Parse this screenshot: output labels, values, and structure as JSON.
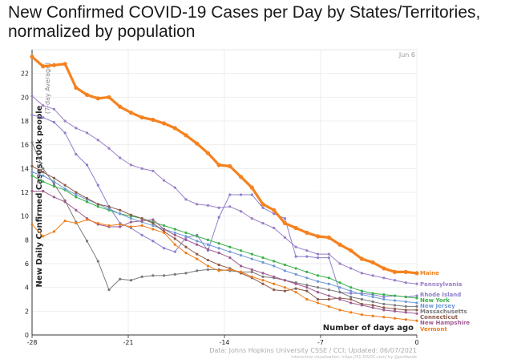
{
  "title": "New Confirmed COVID-19 Cases per Day by States/Territories, normalized by population",
  "chart_data": {
    "type": "line",
    "ylabel": "New Daily Confirmed Cases/100k people",
    "ylabel_sub": "(7-day Average)",
    "xlabel": "Number of days ago",
    "date_label": "Jun 6",
    "source": "Data: Johns Hopkins University CSSE / CCI; Updated: 06/07/2021",
    "source_sub": "Interactive visualization: https://91-DIVOC.com/ by @profwade",
    "xlim": [
      -28,
      0
    ],
    "ylim": [
      0,
      24
    ],
    "xticks": [
      -28,
      -21,
      -14,
      -7,
      0
    ],
    "yticks": [
      0,
      2,
      4,
      6,
      8,
      10,
      12,
      14,
      16,
      18,
      20,
      22
    ],
    "series": [
      {
        "name": "Maine",
        "color": "#f5821f",
        "highlight": true,
        "values": [
          23.4,
          22.6,
          22.7,
          22.8,
          20.8,
          20.2,
          19.9,
          20.0,
          19.2,
          18.7,
          18.3,
          18.1,
          17.8,
          17.4,
          16.8,
          16.1,
          15.3,
          14.3,
          14.2,
          13.3,
          12.4,
          11.0,
          10.5,
          9.4,
          9.0,
          8.6,
          8.3,
          8.2,
          7.6,
          7.1,
          6.4,
          6.1,
          5.6,
          5.3,
          5.3,
          5.2
        ]
      },
      {
        "name": "Pennsylvania",
        "color": "#9b7ec8",
        "highlight": false,
        "values": [
          20.1,
          19.3,
          19.0,
          18.0,
          17.4,
          17.0,
          16.4,
          15.7,
          14.9,
          14.3,
          14.0,
          13.8,
          13.0,
          12.4,
          11.4,
          11.0,
          10.9,
          10.7,
          10.8,
          10.4,
          9.8,
          9.4,
          9.0,
          8.2,
          7.4,
          7.1,
          6.8,
          6.8,
          6.0,
          5.6,
          5.2,
          5.0,
          4.8,
          4.6,
          4.4,
          4.3
        ]
      },
      {
        "name": "Rhode Island",
        "color": "#8a80cc",
        "highlight": false,
        "values": [
          18.5,
          18.3,
          17.9,
          17.0,
          15.2,
          14.3,
          12.6,
          10.8,
          9.4,
          9.0,
          8.4,
          7.9,
          7.3,
          7.0,
          8.2,
          8.4,
          7.1,
          9.9,
          11.8,
          11.8,
          11.8,
          10.7,
          10.2,
          9.8,
          6.6,
          6.6,
          6.5,
          6.5,
          3.6,
          3.5,
          3.5,
          3.4,
          3.2,
          3.3,
          3.2,
          3.3
        ]
      },
      {
        "name": "New York",
        "color": "#3ab04a",
        "highlight": false,
        "values": [
          13.4,
          12.9,
          12.5,
          12.2,
          11.6,
          11.2,
          10.8,
          10.5,
          10.2,
          10.0,
          9.8,
          9.5,
          9.2,
          8.9,
          8.6,
          8.3,
          8.0,
          7.7,
          7.4,
          7.1,
          6.8,
          6.5,
          6.2,
          5.9,
          5.6,
          5.3,
          5.0,
          4.8,
          4.4,
          4.0,
          3.7,
          3.5,
          3.4,
          3.3,
          3.2,
          3.1
        ]
      },
      {
        "name": "New Jersey",
        "color": "#6f9ad8",
        "highlight": false,
        "values": [
          13.7,
          13.4,
          12.9,
          12.3,
          11.8,
          11.4,
          11.0,
          10.6,
          10.2,
          9.8,
          9.5,
          9.2,
          8.9,
          8.6,
          8.3,
          7.9,
          7.6,
          7.3,
          7.0,
          6.7,
          6.4,
          6.1,
          5.8,
          5.4,
          5.1,
          4.8,
          4.5,
          4.3,
          4.0,
          3.7,
          3.4,
          3.2,
          3.0,
          2.9,
          2.8,
          2.7
        ]
      },
      {
        "name": "Massachusetts",
        "color": "#7a7a7a",
        "highlight": false,
        "values": [
          16.2,
          14.0,
          12.7,
          11.3,
          9.5,
          7.9,
          6.2,
          3.8,
          4.7,
          4.6,
          4.9,
          5.0,
          5.0,
          5.1,
          5.2,
          5.4,
          5.5,
          5.5,
          5.4,
          5.3,
          5.3,
          4.9,
          4.8,
          4.6,
          4.4,
          4.2,
          4.0,
          3.8,
          3.6,
          3.2,
          3.0,
          2.8,
          2.6,
          2.5,
          2.4,
          2.4
        ]
      },
      {
        "name": "Connecticut",
        "color": "#8b5a4a",
        "highlight": false,
        "values": [
          14.2,
          13.7,
          13.2,
          12.6,
          12.0,
          11.5,
          11.0,
          10.8,
          10.5,
          10.1,
          9.8,
          9.4,
          8.7,
          8.1,
          7.4,
          6.8,
          6.3,
          5.9,
          5.6,
          5.2,
          4.8,
          4.3,
          3.8,
          3.7,
          3.9,
          3.7,
          3.0,
          3.0,
          3.1,
          3.0,
          2.6,
          2.5,
          2.3,
          2.2,
          2.1,
          2.1
        ]
      },
      {
        "name": "New Hampshire",
        "color": "#9e5b8f",
        "highlight": false,
        "values": [
          12.1,
          12.1,
          11.6,
          11.2,
          10.5,
          9.8,
          9.3,
          9.1,
          9.1,
          9.5,
          9.6,
          9.7,
          8.9,
          8.4,
          8.0,
          7.6,
          7.2,
          6.9,
          6.5,
          5.8,
          5.5,
          5.2,
          4.9,
          4.6,
          4.3,
          4.0,
          3.6,
          3.3,
          3.0,
          2.7,
          2.5,
          2.3,
          2.1,
          2.0,
          1.9,
          1.8
        ]
      },
      {
        "name": "Vermont",
        "color": "#ef7d19",
        "highlight": false,
        "values": [
          9.3,
          8.3,
          8.7,
          9.6,
          9.4,
          9.7,
          9.4,
          9.2,
          9.3,
          9.1,
          9.2,
          8.9,
          8.6,
          7.6,
          6.9,
          6.4,
          5.8,
          5.4,
          5.5,
          5.3,
          4.9,
          4.6,
          4.3,
          4.0,
          3.6,
          3.0,
          2.7,
          2.4,
          2.1,
          1.9,
          1.7,
          1.6,
          1.5,
          1.4,
          1.3,
          1.2
        ]
      }
    ]
  }
}
